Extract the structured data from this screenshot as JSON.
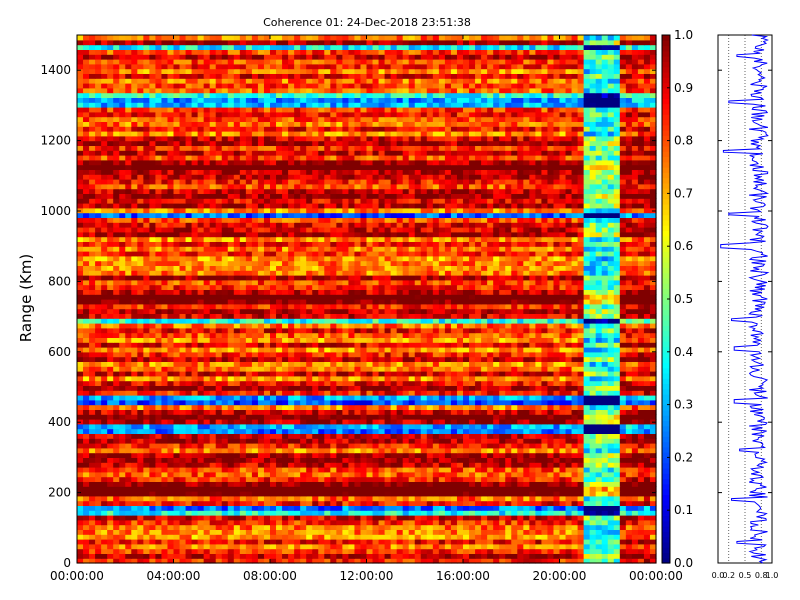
{
  "chart_data": [
    {
      "type": "heatmap",
      "title": "Coherence 01: 24-Dec-2018 23:51:38",
      "ylabel": "Range (Km)",
      "xlabel": "",
      "x_ticks": [
        "00:00:00",
        "04:00:00",
        "08:00:00",
        "12:00:00",
        "16:00:00",
        "20:00:00",
        "00:00:00"
      ],
      "xlim_hours": [
        0,
        24
      ],
      "y_ticks": [
        0,
        200,
        400,
        600,
        800,
        1000,
        1200,
        1400
      ],
      "ylim": [
        0,
        1500
      ],
      "colorscale": "jet",
      "value_range": [
        0.0,
        1.0
      ],
      "colorbar_ticks": [
        "0.0",
        "0.1",
        "0.2",
        "0.3",
        "0.4",
        "0.5",
        "0.6",
        "0.7",
        "0.8",
        "0.9",
        "1.0"
      ],
      "regions": [
        {
          "hours": [
            0,
            21
          ],
          "typical_coherence": 0.85
        },
        {
          "hours": [
            21,
            22.5
          ],
          "typical_coherence": 0.45
        },
        {
          "hours": [
            22.5,
            23.8
          ],
          "typical_coherence": 0.9
        }
      ],
      "low_coherence_range_bands_km": [
        150,
        380,
        460,
        690,
        990,
        1310,
        1330,
        1465
      ],
      "high_coherence_range_bands_km": [
        215,
        410,
        700,
        760,
        950,
        1030,
        1110
      ]
    },
    {
      "type": "line",
      "title": "",
      "xlabel": "",
      "ylabel": "",
      "x_ticks": [
        "0.0",
        "0.2",
        "0.5",
        "0.8",
        "1.0"
      ],
      "xlim": [
        0,
        1
      ],
      "ylim": [
        0,
        1500
      ],
      "series_color": "#0000ff",
      "typical_value": 0.75,
      "dips_km": [
        {
          "range": 60,
          "value": 0.35
        },
        {
          "range": 180,
          "value": 0.25
        },
        {
          "range": 320,
          "value": 0.4
        },
        {
          "range": 460,
          "value": 0.3
        },
        {
          "range": 610,
          "value": 0.3
        },
        {
          "range": 690,
          "value": 0.25
        },
        {
          "range": 900,
          "value": 0.05
        },
        {
          "range": 990,
          "value": 0.2
        },
        {
          "range": 1170,
          "value": 0.1
        },
        {
          "range": 1310,
          "value": 0.2
        },
        {
          "range": 1440,
          "value": 0.35
        }
      ]
    }
  ]
}
